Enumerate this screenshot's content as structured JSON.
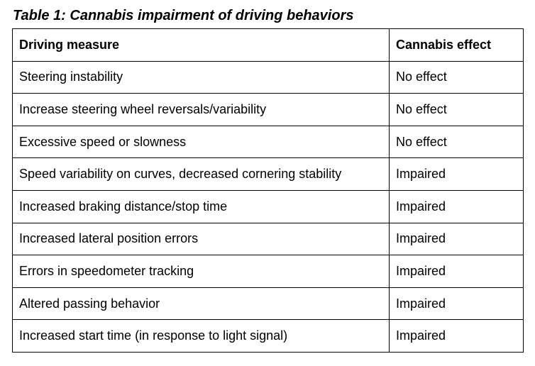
{
  "table": {
    "caption": "Table 1: Cannabis impairment of driving behaviors",
    "headers": [
      "Driving measure",
      "Cannabis effect"
    ],
    "rows": [
      [
        "Steering instability",
        "No effect"
      ],
      [
        "Increase steering wheel reversals/variability",
        "No effect"
      ],
      [
        "Excessive speed or slowness",
        "No effect"
      ],
      [
        "Speed variability on curves, decreased cornering stability",
        "Impaired"
      ],
      [
        "Increased braking distance/stop time",
        "Impaired"
      ],
      [
        "Increased lateral position errors",
        "Impaired"
      ],
      [
        "Errors in speedometer tracking",
        "Impaired"
      ],
      [
        "Altered passing behavior",
        "Impaired"
      ],
      [
        "Increased start time (in response to light signal)",
        "Impaired"
      ]
    ]
  }
}
